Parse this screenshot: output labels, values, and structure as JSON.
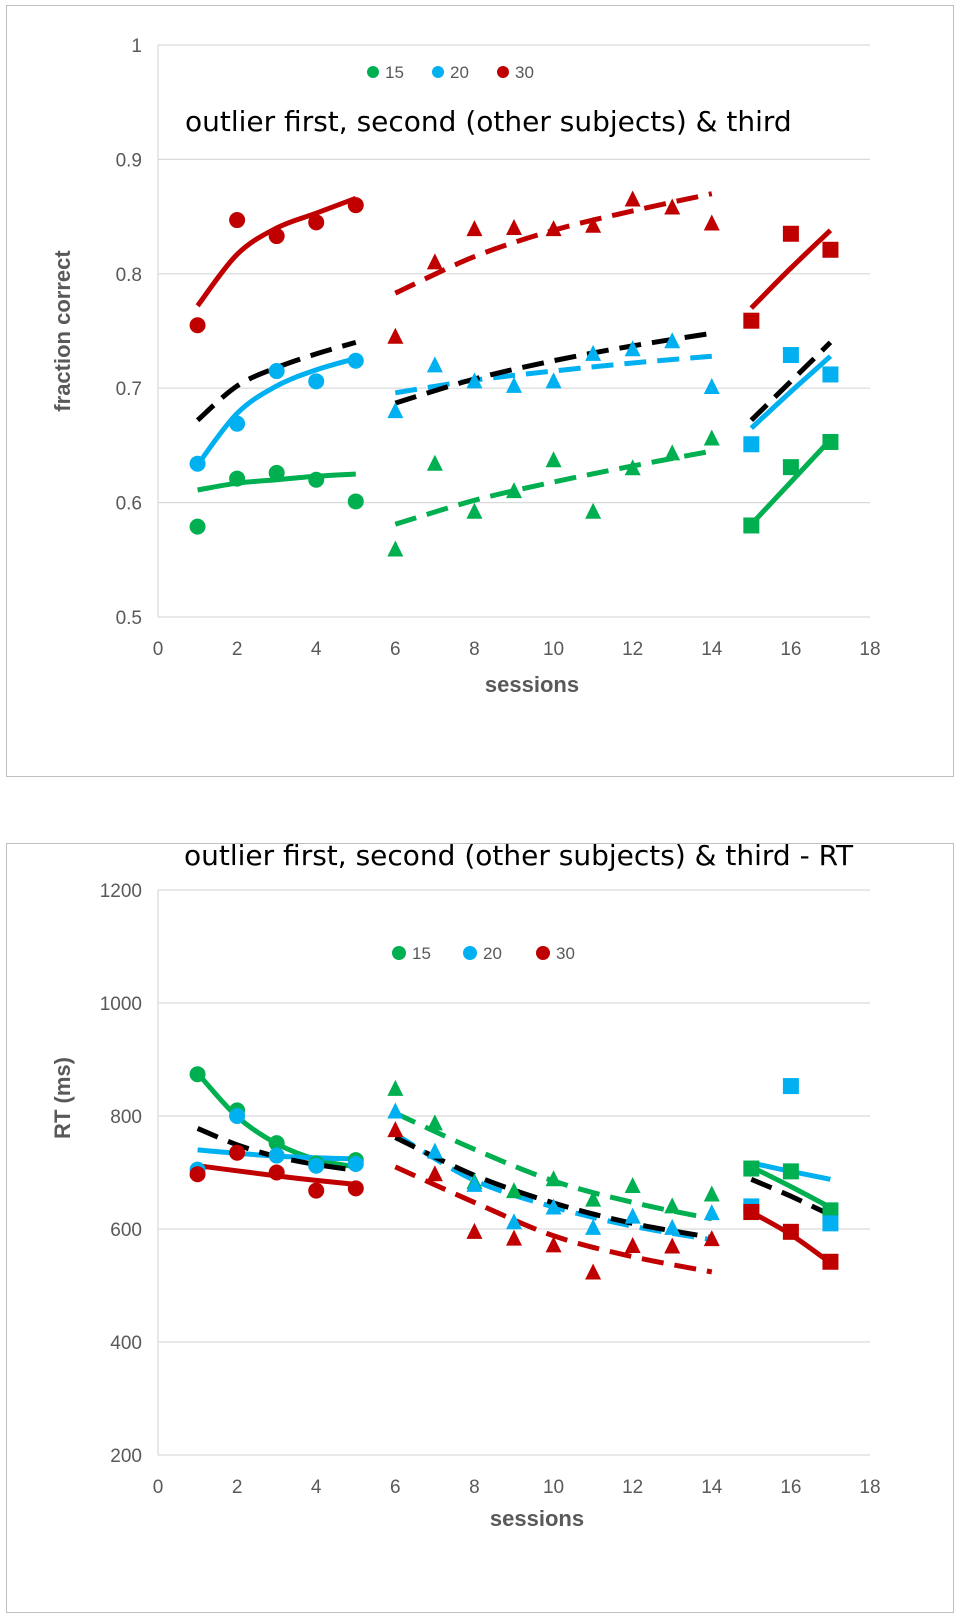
{
  "chart_data": [
    {
      "type": "scatter",
      "title": "outlier first, second (other subjects) & third",
      "xlabel": "sessions",
      "ylabel": "fraction correct",
      "xlim": [
        0,
        18
      ],
      "ylim": [
        0.5,
        1
      ],
      "x_ticks": [
        "0",
        "2",
        "4",
        "6",
        "8",
        "10",
        "12",
        "14",
        "16",
        "18"
      ],
      "y_ticks": [
        "0.5",
        "0.6",
        "0.7",
        "0.8",
        "0.9",
        "1"
      ],
      "grid": "horizontal",
      "legend_position": "top",
      "legend": [
        {
          "label": "15",
          "color": "#00b050"
        },
        {
          "label": "20",
          "color": "#00b0f0"
        },
        {
          "label": "30",
          "color": "#c00000"
        }
      ],
      "series": [
        {
          "name": "15",
          "color": "#00b050",
          "marker": "circle",
          "x": [
            1,
            2,
            3,
            4,
            5
          ],
          "y": [
            0.579,
            0.621,
            0.626,
            0.62,
            0.601
          ]
        },
        {
          "name": "20",
          "color": "#00b0f0",
          "marker": "circle",
          "x": [
            1,
            2,
            3,
            4,
            5
          ],
          "y": [
            0.634,
            0.669,
            0.715,
            0.706,
            0.724
          ]
        },
        {
          "name": "30",
          "color": "#c00000",
          "marker": "circle",
          "x": [
            1,
            2,
            3,
            4,
            5
          ],
          "y": [
            0.755,
            0.847,
            0.833,
            0.845,
            0.86
          ]
        },
        {
          "name": "15",
          "color": "#00b050",
          "marker": "triangle",
          "x": [
            6,
            7,
            8,
            9,
            10,
            11,
            12,
            13,
            14
          ],
          "y": [
            0.559,
            0.634,
            0.592,
            0.61,
            0.637,
            0.592,
            0.63,
            0.643,
            0.656
          ]
        },
        {
          "name": "20",
          "color": "#00b0f0",
          "marker": "triangle",
          "x": [
            6,
            7,
            8,
            9,
            10,
            11,
            12,
            13,
            14
          ],
          "y": [
            0.68,
            0.72,
            0.706,
            0.702,
            0.706,
            0.73,
            0.734,
            0.741,
            0.701
          ]
        },
        {
          "name": "30",
          "color": "#c00000",
          "marker": "triangle",
          "x": [
            6,
            7,
            8,
            9,
            10,
            11,
            12,
            13,
            14
          ],
          "y": [
            0.745,
            0.81,
            0.839,
            0.84,
            0.839,
            0.842,
            0.865,
            0.858,
            0.844
          ]
        },
        {
          "name": "15",
          "color": "#00b050",
          "marker": "square",
          "x": [
            15,
            16,
            17
          ],
          "y": [
            0.58,
            0.631,
            0.653
          ]
        },
        {
          "name": "20",
          "color": "#00b0f0",
          "marker": "square",
          "x": [
            15,
            16,
            17
          ],
          "y": [
            0.651,
            0.729,
            0.712
          ]
        },
        {
          "name": "30",
          "color": "#c00000",
          "marker": "square",
          "x": [
            15,
            16,
            17
          ],
          "y": [
            0.759,
            0.835,
            0.821
          ]
        }
      ],
      "trendlines": [
        {
          "color": "#00b050",
          "style": "solid",
          "x": [
            1,
            2,
            3,
            4,
            5
          ],
          "y": [
            0.611,
            0.617,
            0.62,
            0.623,
            0.625
          ]
        },
        {
          "color": "#00b0f0",
          "style": "solid",
          "x": [
            1,
            2,
            3,
            4,
            5
          ],
          "y": [
            0.633,
            0.678,
            0.702,
            0.716,
            0.726
          ]
        },
        {
          "color": "#c00000",
          "style": "solid",
          "x": [
            1,
            2,
            3,
            4,
            5
          ],
          "y": [
            0.772,
            0.817,
            0.84,
            0.853,
            0.866
          ]
        },
        {
          "color": "#000000",
          "style": "dashed",
          "x": [
            1,
            2,
            3,
            4,
            5
          ],
          "y": [
            0.672,
            0.702,
            0.718,
            0.73,
            0.74
          ]
        },
        {
          "color": "#00b050",
          "style": "dashed",
          "x": [
            6,
            8,
            10,
            12,
            14
          ],
          "y": [
            0.581,
            0.602,
            0.618,
            0.632,
            0.645
          ]
        },
        {
          "color": "#00b0f0",
          "style": "dashed",
          "x": [
            6,
            8,
            10,
            12,
            14
          ],
          "y": [
            0.696,
            0.707,
            0.715,
            0.722,
            0.728
          ]
        },
        {
          "color": "#c00000",
          "style": "dashed",
          "x": [
            6,
            8,
            10,
            12,
            14
          ],
          "y": [
            0.783,
            0.815,
            0.838,
            0.855,
            0.87
          ]
        },
        {
          "color": "#000000",
          "style": "dashed",
          "x": [
            6,
            8,
            10,
            12,
            14
          ],
          "y": [
            0.687,
            0.708,
            0.724,
            0.737,
            0.748
          ]
        },
        {
          "color": "#00b050",
          "style": "solid",
          "x": [
            15,
            16,
            17
          ],
          "y": [
            0.581,
            0.618,
            0.655
          ]
        },
        {
          "color": "#00b0f0",
          "style": "solid",
          "x": [
            15,
            16,
            17
          ],
          "y": [
            0.665,
            0.697,
            0.728
          ]
        },
        {
          "color": "#c00000",
          "style": "solid",
          "x": [
            15,
            16,
            17
          ],
          "y": [
            0.77,
            0.805,
            0.838
          ]
        },
        {
          "color": "#000000",
          "style": "dashed",
          "x": [
            15,
            16,
            17
          ],
          "y": [
            0.672,
            0.706,
            0.74
          ]
        }
      ]
    },
    {
      "type": "scatter",
      "title": "outlier first, second (other subjects) & third - RT",
      "xlabel": "sessions",
      "ylabel": "RT (ms)",
      "xlim": [
        0,
        18
      ],
      "ylim": [
        200,
        1200
      ],
      "x_ticks": [
        "0",
        "2",
        "4",
        "6",
        "8",
        "10",
        "12",
        "14",
        "16",
        "18"
      ],
      "y_ticks": [
        "200",
        "400",
        "600",
        "800",
        "1000",
        "1200"
      ],
      "grid": "horizontal",
      "legend_position": "top",
      "legend": [
        {
          "label": "15",
          "color": "#00b050"
        },
        {
          "label": "20",
          "color": "#00b0f0"
        },
        {
          "label": "30",
          "color": "#c00000"
        }
      ],
      "series": [
        {
          "name": "15",
          "color": "#00b050",
          "marker": "circle",
          "x": [
            1,
            2,
            3,
            4,
            5
          ],
          "y": [
            874,
            810,
            752,
            716,
            722
          ]
        },
        {
          "name": "20",
          "color": "#00b0f0",
          "marker": "circle",
          "x": [
            1,
            2,
            3,
            4,
            5
          ],
          "y": [
            705,
            800,
            730,
            712,
            715
          ]
        },
        {
          "name": "30",
          "color": "#c00000",
          "marker": "circle",
          "x": [
            1,
            2,
            3,
            4,
            5
          ],
          "y": [
            697,
            735,
            700,
            668,
            672
          ]
        },
        {
          "name": "15",
          "color": "#00b050",
          "marker": "triangle",
          "x": [
            6,
            7,
            8,
            9,
            10,
            11,
            12,
            13,
            14
          ],
          "y": [
            848,
            787,
            683,
            667,
            688,
            652,
            676,
            640,
            661
          ]
        },
        {
          "name": "20",
          "color": "#00b0f0",
          "marker": "triangle",
          "x": [
            6,
            7,
            8,
            9,
            10,
            11,
            12,
            13,
            14
          ],
          "y": [
            808,
            737,
            678,
            612,
            638,
            602,
            622,
            602,
            628
          ]
        },
        {
          "name": "30",
          "color": "#c00000",
          "marker": "triangle",
          "x": [
            6,
            7,
            8,
            9,
            10,
            11,
            12,
            13,
            14
          ],
          "y": [
            775,
            697,
            595,
            583,
            571,
            523,
            570,
            569,
            582
          ]
        },
        {
          "name": "15",
          "color": "#00b050",
          "marker": "square",
          "x": [
            15,
            16,
            17
          ],
          "y": [
            707,
            702,
            633
          ]
        },
        {
          "name": "20",
          "color": "#00b0f0",
          "marker": "square",
          "x": [
            15,
            16,
            17
          ],
          "y": [
            640,
            853,
            610
          ]
        },
        {
          "name": "30",
          "color": "#c00000",
          "marker": "square",
          "x": [
            15,
            16,
            17
          ],
          "y": [
            630,
            595,
            542
          ]
        }
      ],
      "trendlines": [
        {
          "color": "#00b050",
          "style": "solid",
          "x": [
            1,
            2,
            3,
            4,
            5
          ],
          "y": [
            876,
            799,
            751,
            723,
            710
          ]
        },
        {
          "color": "#00b0f0",
          "style": "solid",
          "x": [
            1,
            2,
            3,
            4,
            5
          ],
          "y": [
            740,
            734,
            729,
            726,
            724
          ]
        },
        {
          "color": "#c00000",
          "style": "solid",
          "x": [
            1,
            2,
            3,
            4,
            5
          ],
          "y": [
            712,
            703,
            694,
            686,
            679
          ]
        },
        {
          "color": "#000000",
          "style": "dashed",
          "x": [
            1,
            2,
            3,
            4,
            5
          ],
          "y": [
            778,
            749,
            728,
            714,
            704
          ]
        },
        {
          "color": "#00b050",
          "style": "dashed",
          "x": [
            6,
            8,
            10,
            12,
            14
          ],
          "y": [
            805,
            741,
            685,
            647,
            618
          ]
        },
        {
          "color": "#00b0f0",
          "style": "dashed",
          "x": [
            6,
            8,
            10,
            12,
            14
          ],
          "y": [
            768,
            686,
            639,
            605,
            581
          ]
        },
        {
          "color": "#c00000",
          "style": "dashed",
          "x": [
            6,
            8,
            10,
            12,
            14
          ],
          "y": [
            710,
            647,
            588,
            551,
            524
          ]
        },
        {
          "color": "#000000",
          "style": "dashed",
          "x": [
            6,
            8,
            10,
            12,
            14
          ],
          "y": [
            762,
            695,
            646,
            610,
            585
          ]
        },
        {
          "color": "#00b050",
          "style": "solid",
          "x": [
            15,
            16,
            17
          ],
          "y": [
            710,
            675,
            638
          ]
        },
        {
          "color": "#00b0f0",
          "style": "solid",
          "x": [
            15,
            16,
            17
          ],
          "y": [
            717,
            702,
            688
          ]
        },
        {
          "color": "#c00000",
          "style": "solid",
          "x": [
            15,
            16,
            17
          ],
          "y": [
            630,
            590,
            540
          ]
        },
        {
          "color": "#000000",
          "style": "dashed",
          "x": [
            15,
            16,
            17
          ],
          "y": [
            688,
            658,
            625
          ]
        }
      ]
    }
  ]
}
